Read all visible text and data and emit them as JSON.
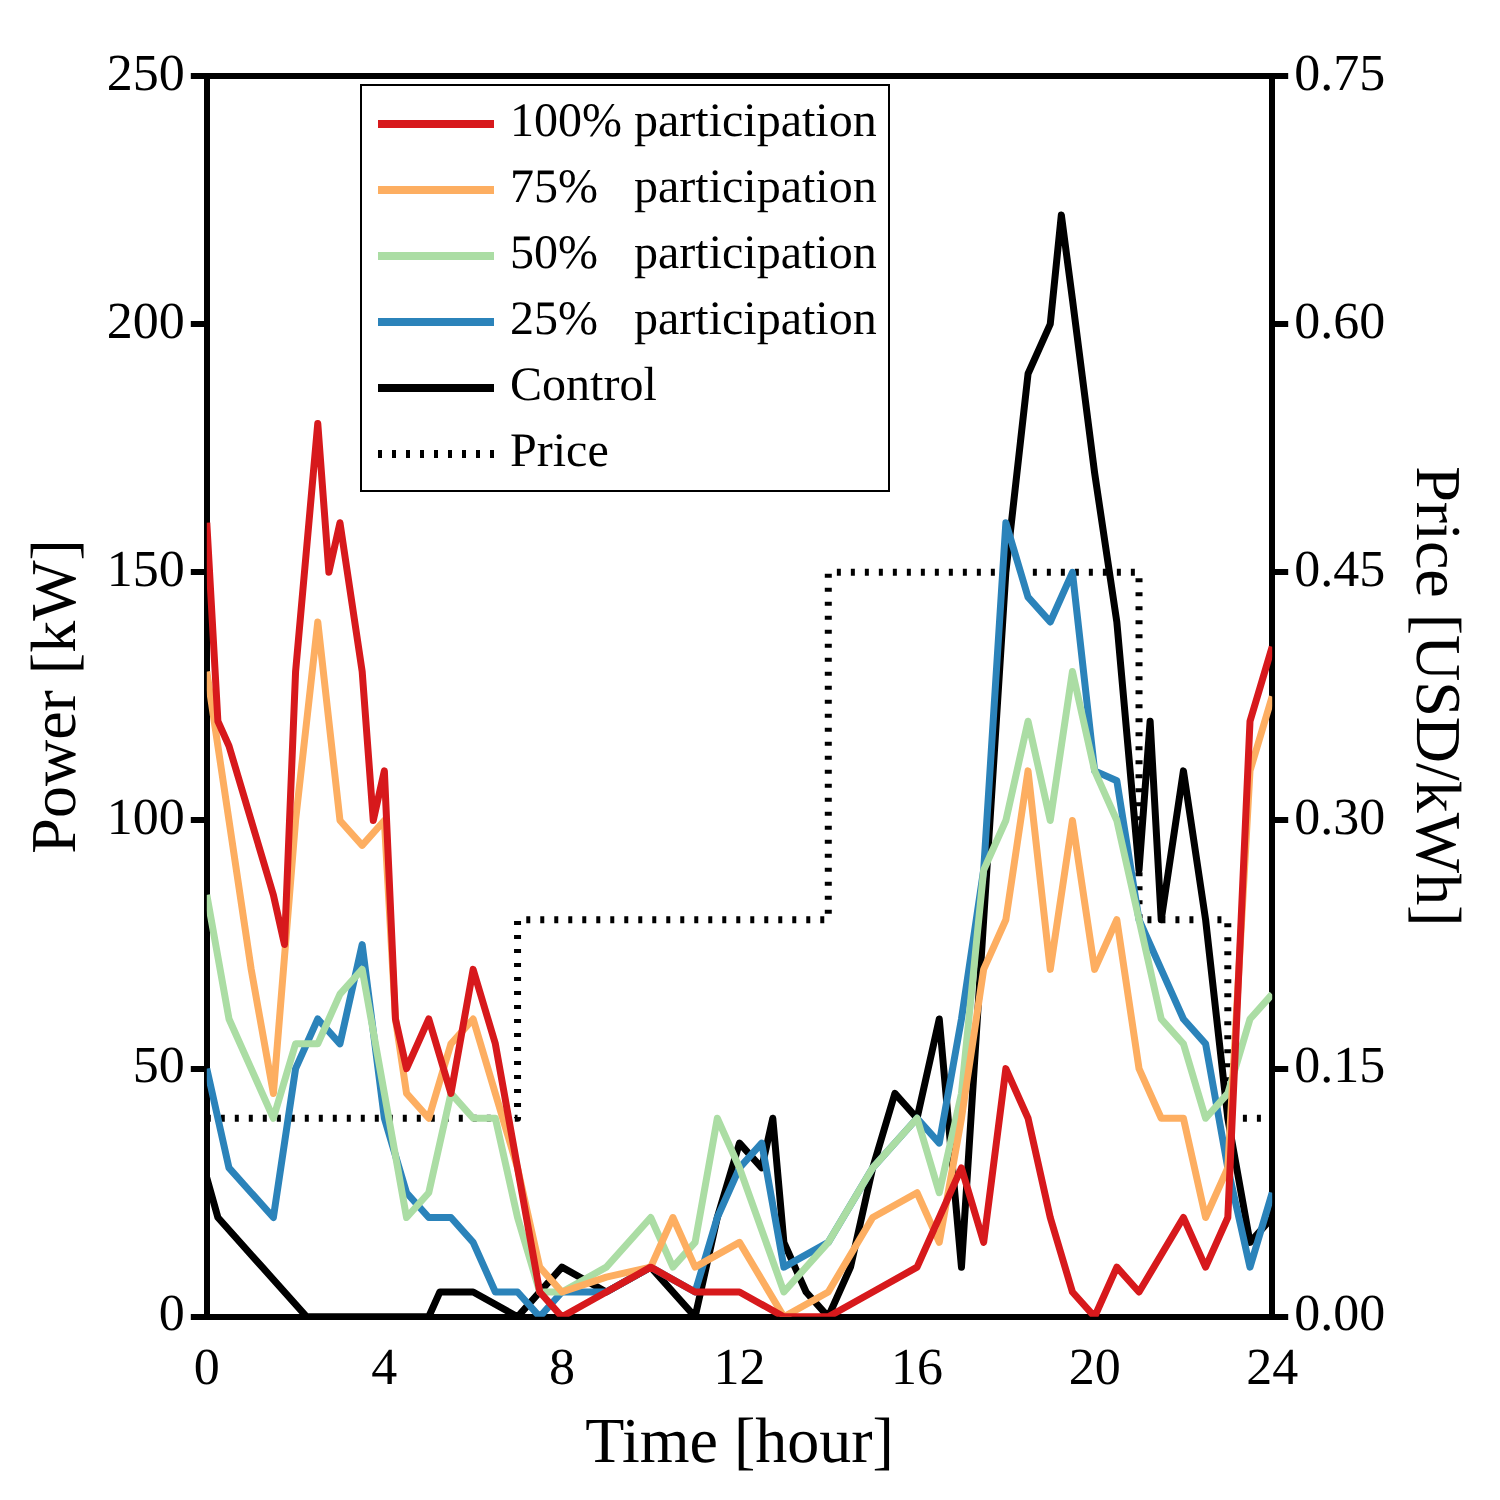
{
  "chart_data": {
    "type": "line",
    "xlabel": "Time [hour]",
    "ylabel": "Power [kW]",
    "y2label": "Price [USD/kWh]",
    "xlim": [
      0,
      24
    ],
    "xticks": [
      0,
      4,
      8,
      12,
      16,
      20,
      24
    ],
    "ylim": [
      0,
      250
    ],
    "yticks": [
      0,
      50,
      100,
      150,
      200,
      250
    ],
    "y2lim": [
      0,
      0.75
    ],
    "y2ticks": [
      {
        "value": 0,
        "label": "0.00"
      },
      {
        "value": 0.15,
        "label": "0.15"
      },
      {
        "value": 0.3,
        "label": "0.30"
      },
      {
        "value": 0.45,
        "label": "0.45"
      },
      {
        "value": 0.6,
        "label": "0.60"
      },
      {
        "value": 0.75,
        "label": "0.75"
      }
    ],
    "grid": false,
    "legend": "top",
    "marker": "none",
    "line_style": "solid",
    "series": [
      {
        "name": "100% participation",
        "color": "#d7191c",
        "x": [
          0,
          0.25,
          0.5,
          1,
          1.5,
          1.75,
          2,
          2.5,
          2.75,
          3,
          3.5,
          3.75,
          4,
          4.25,
          4.5,
          5,
          5.5,
          6,
          6.5,
          7,
          7.5,
          8,
          9,
          10,
          11,
          12,
          13,
          14,
          15,
          16,
          17,
          17.5,
          18,
          18.5,
          19,
          19.5,
          20,
          20.5,
          21,
          22,
          22.5,
          23,
          23.5,
          24
        ],
        "values": [
          160,
          120,
          115,
          100,
          85,
          75,
          130,
          180,
          150,
          160,
          130,
          100,
          110,
          60,
          50,
          60,
          45,
          70,
          55,
          30,
          5,
          0,
          5,
          10,
          5,
          5,
          0,
          0,
          5,
          10,
          30,
          15,
          50,
          40,
          20,
          5,
          0,
          10,
          5,
          20,
          10,
          20,
          120,
          135
        ]
      },
      {
        "name": "75%   participation",
        "color": "#fdae61",
        "x": [
          0,
          0.5,
          1,
          1.5,
          2,
          2.5,
          3,
          3.5,
          4,
          4.25,
          4.5,
          5,
          5.5,
          6,
          6.5,
          7,
          7.5,
          8,
          9,
          10,
          10.5,
          11,
          12,
          13,
          14,
          15,
          16,
          16.5,
          17,
          17.5,
          18,
          18.5,
          19,
          19.5,
          20,
          20.5,
          21,
          21.5,
          22,
          22.5,
          23,
          23.5,
          24
        ],
        "values": [
          130,
          100,
          70,
          45,
          100,
          140,
          100,
          95,
          100,
          60,
          45,
          40,
          55,
          60,
          45,
          30,
          10,
          5,
          8,
          10,
          20,
          10,
          15,
          0,
          5,
          20,
          25,
          15,
          40,
          70,
          80,
          110,
          70,
          100,
          70,
          80,
          50,
          40,
          40,
          20,
          30,
          110,
          125
        ]
      },
      {
        "name": "50%   participation",
        "color": "#abdda4",
        "x": [
          0,
          0.5,
          1,
          1.5,
          2,
          2.5,
          3,
          3.5,
          4,
          4.5,
          5,
          5.5,
          6,
          6.5,
          7,
          7.5,
          8,
          9,
          10,
          10.5,
          11,
          11.5,
          12,
          13,
          14,
          15,
          16,
          16.5,
          17,
          17.5,
          18,
          18.5,
          19,
          19.5,
          20,
          20.5,
          21,
          21.5,
          22,
          22.5,
          23,
          23.5,
          24
        ],
        "values": [
          85,
          60,
          50,
          40,
          55,
          55,
          65,
          70,
          45,
          20,
          25,
          45,
          40,
          40,
          20,
          5,
          5,
          10,
          20,
          10,
          15,
          40,
          30,
          5,
          15,
          30,
          40,
          25,
          45,
          90,
          100,
          120,
          100,
          130,
          110,
          100,
          80,
          60,
          55,
          40,
          45,
          60,
          65
        ]
      },
      {
        "name": "25%   participation",
        "color": "#2b83ba",
        "x": [
          0,
          0.5,
          1,
          1.5,
          2,
          2.5,
          3,
          3.5,
          4,
          4.5,
          5,
          5.5,
          6,
          6.5,
          7,
          7.5,
          8,
          9,
          10,
          11,
          11.5,
          12,
          12.5,
          13,
          14,
          15,
          16,
          16.5,
          17,
          17.5,
          18,
          18.5,
          19,
          19.5,
          20,
          20.5,
          21,
          21.5,
          22,
          22.5,
          23,
          23.5,
          24
        ],
        "values": [
          50,
          30,
          25,
          20,
          50,
          60,
          55,
          75,
          40,
          25,
          20,
          20,
          15,
          5,
          5,
          0,
          5,
          5,
          10,
          5,
          20,
          30,
          35,
          10,
          15,
          30,
          40,
          35,
          60,
          90,
          160,
          145,
          140,
          150,
          110,
          108,
          80,
          70,
          60,
          55,
          30,
          10,
          25
        ]
      },
      {
        "name": "Control",
        "color": "#000000",
        "x": [
          0,
          0.25,
          1.25,
          2.25,
          5,
          5.25,
          6,
          7,
          8,
          9,
          10,
          11,
          11.5,
          12,
          12.5,
          12.75,
          13,
          13.5,
          14,
          14.5,
          15,
          15.5,
          16,
          16.5,
          17,
          17.5,
          18,
          18.5,
          19,
          19.25,
          19.5,
          20,
          20.5,
          21,
          21.25,
          21.5,
          22,
          22.5,
          23,
          23.5,
          24
        ],
        "values": [
          28,
          20,
          10,
          0,
          0,
          5,
          5,
          0,
          10,
          5,
          10,
          0,
          20,
          35,
          30,
          40,
          15,
          5,
          0,
          10,
          30,
          45,
          40,
          60,
          10,
          80,
          150,
          190,
          200,
          222,
          205,
          170,
          140,
          90,
          120,
          80,
          110,
          80,
          40,
          15,
          20
        ]
      },
      {
        "name": "Price",
        "type": "step",
        "axis": "y2",
        "line_style": "dotted",
        "color": "#000000",
        "x": [
          0,
          7,
          14,
          21,
          23,
          24
        ],
        "values": [
          0.12,
          0.24,
          0.45,
          0.24,
          0.12,
          0.12
        ]
      }
    ]
  }
}
